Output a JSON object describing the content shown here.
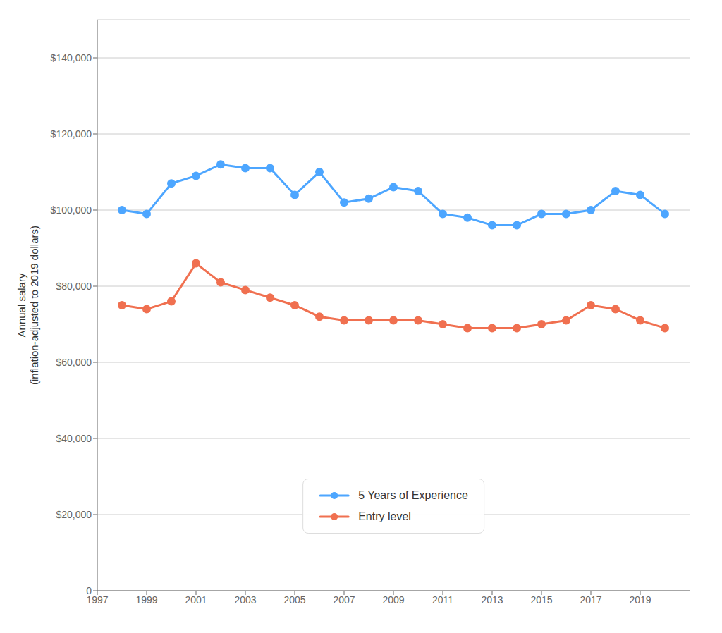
{
  "chart_data": {
    "type": "line",
    "ylabel": "Annual salary\n(inflation-adjusted to 2019 dollars)",
    "x": [
      1998,
      1999,
      2000,
      2001,
      2002,
      2003,
      2004,
      2005,
      2006,
      2007,
      2008,
      2009,
      2010,
      2011,
      2012,
      2013,
      2014,
      2015,
      2016,
      2017,
      2018,
      2019,
      2020
    ],
    "series": [
      {
        "name": "5 Years of Experience",
        "color": "#4da6ff",
        "marker": "circle",
        "line_style": "solid",
        "values": [
          100000,
          99000,
          107000,
          109000,
          112000,
          111000,
          111000,
          104000,
          110000,
          102000,
          103000,
          106000,
          105000,
          99000,
          98000,
          96000,
          96000,
          99000,
          99000,
          100000,
          105000,
          104000,
          99000
        ]
      },
      {
        "name": "Entry level",
        "color": "#f07050",
        "marker": "circle",
        "line_style": "solid",
        "values": [
          75000,
          74000,
          76000,
          86000,
          81000,
          79000,
          77000,
          75000,
          72000,
          71000,
          71000,
          71000,
          71000,
          70000,
          69000,
          69000,
          69000,
          70000,
          71000,
          75000,
          74000,
          71000,
          69000
        ]
      }
    ],
    "xlim": [
      1997,
      2021
    ],
    "xticks": [
      1997,
      1999,
      2001,
      2003,
      2005,
      2007,
      2009,
      2011,
      2013,
      2015,
      2017,
      2019
    ],
    "ylim": [
      0,
      150000
    ],
    "yticks": [
      {
        "value": 0,
        "label": "0"
      },
      {
        "value": 20000,
        "label": "$20,000"
      },
      {
        "value": 40000,
        "label": "$40,000"
      },
      {
        "value": 60000,
        "label": "$60,000"
      },
      {
        "value": 80000,
        "label": "$80,000"
      },
      {
        "value": 100000,
        "label": "$100,000"
      },
      {
        "value": 120000,
        "label": "$120,000"
      },
      {
        "value": 140000,
        "label": "$140,000"
      }
    ],
    "grid": "y",
    "legend": "bottom"
  }
}
